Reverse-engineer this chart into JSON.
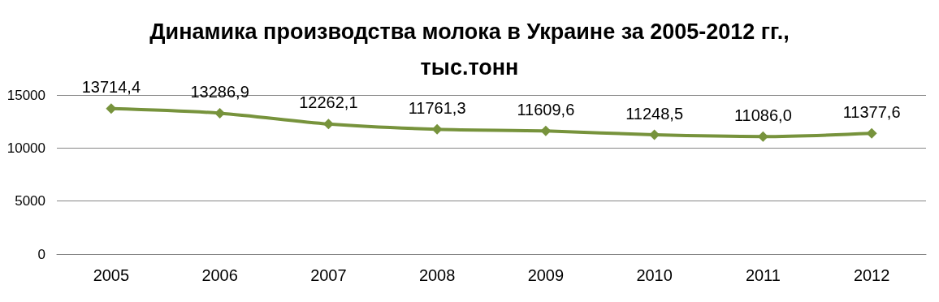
{
  "chart_data": {
    "type": "line",
    "title": "Динамика производства молока в Украине за 2005-2012 гг.,\nтыс.тонн",
    "categories": [
      "2005",
      "2006",
      "2007",
      "2008",
      "2009",
      "2010",
      "2011",
      "2012"
    ],
    "series": [
      {
        "color": "#77933c",
        "values": [
          13714.4,
          13286.9,
          12262.1,
          11761.3,
          11609.6,
          11248.5,
          11086.0,
          11377.6
        ],
        "value_labels": [
          "13714,4",
          "13286,9",
          "12262,1",
          "11761,3",
          "11609,6",
          "11248,5",
          "11086,0",
          "11377,6"
        ]
      }
    ],
    "ylim": [
      0,
      15000
    ],
    "yticks": [
      0,
      5000,
      10000,
      15000
    ],
    "grid": "y",
    "marker": "diamond",
    "line_style": "solid"
  }
}
